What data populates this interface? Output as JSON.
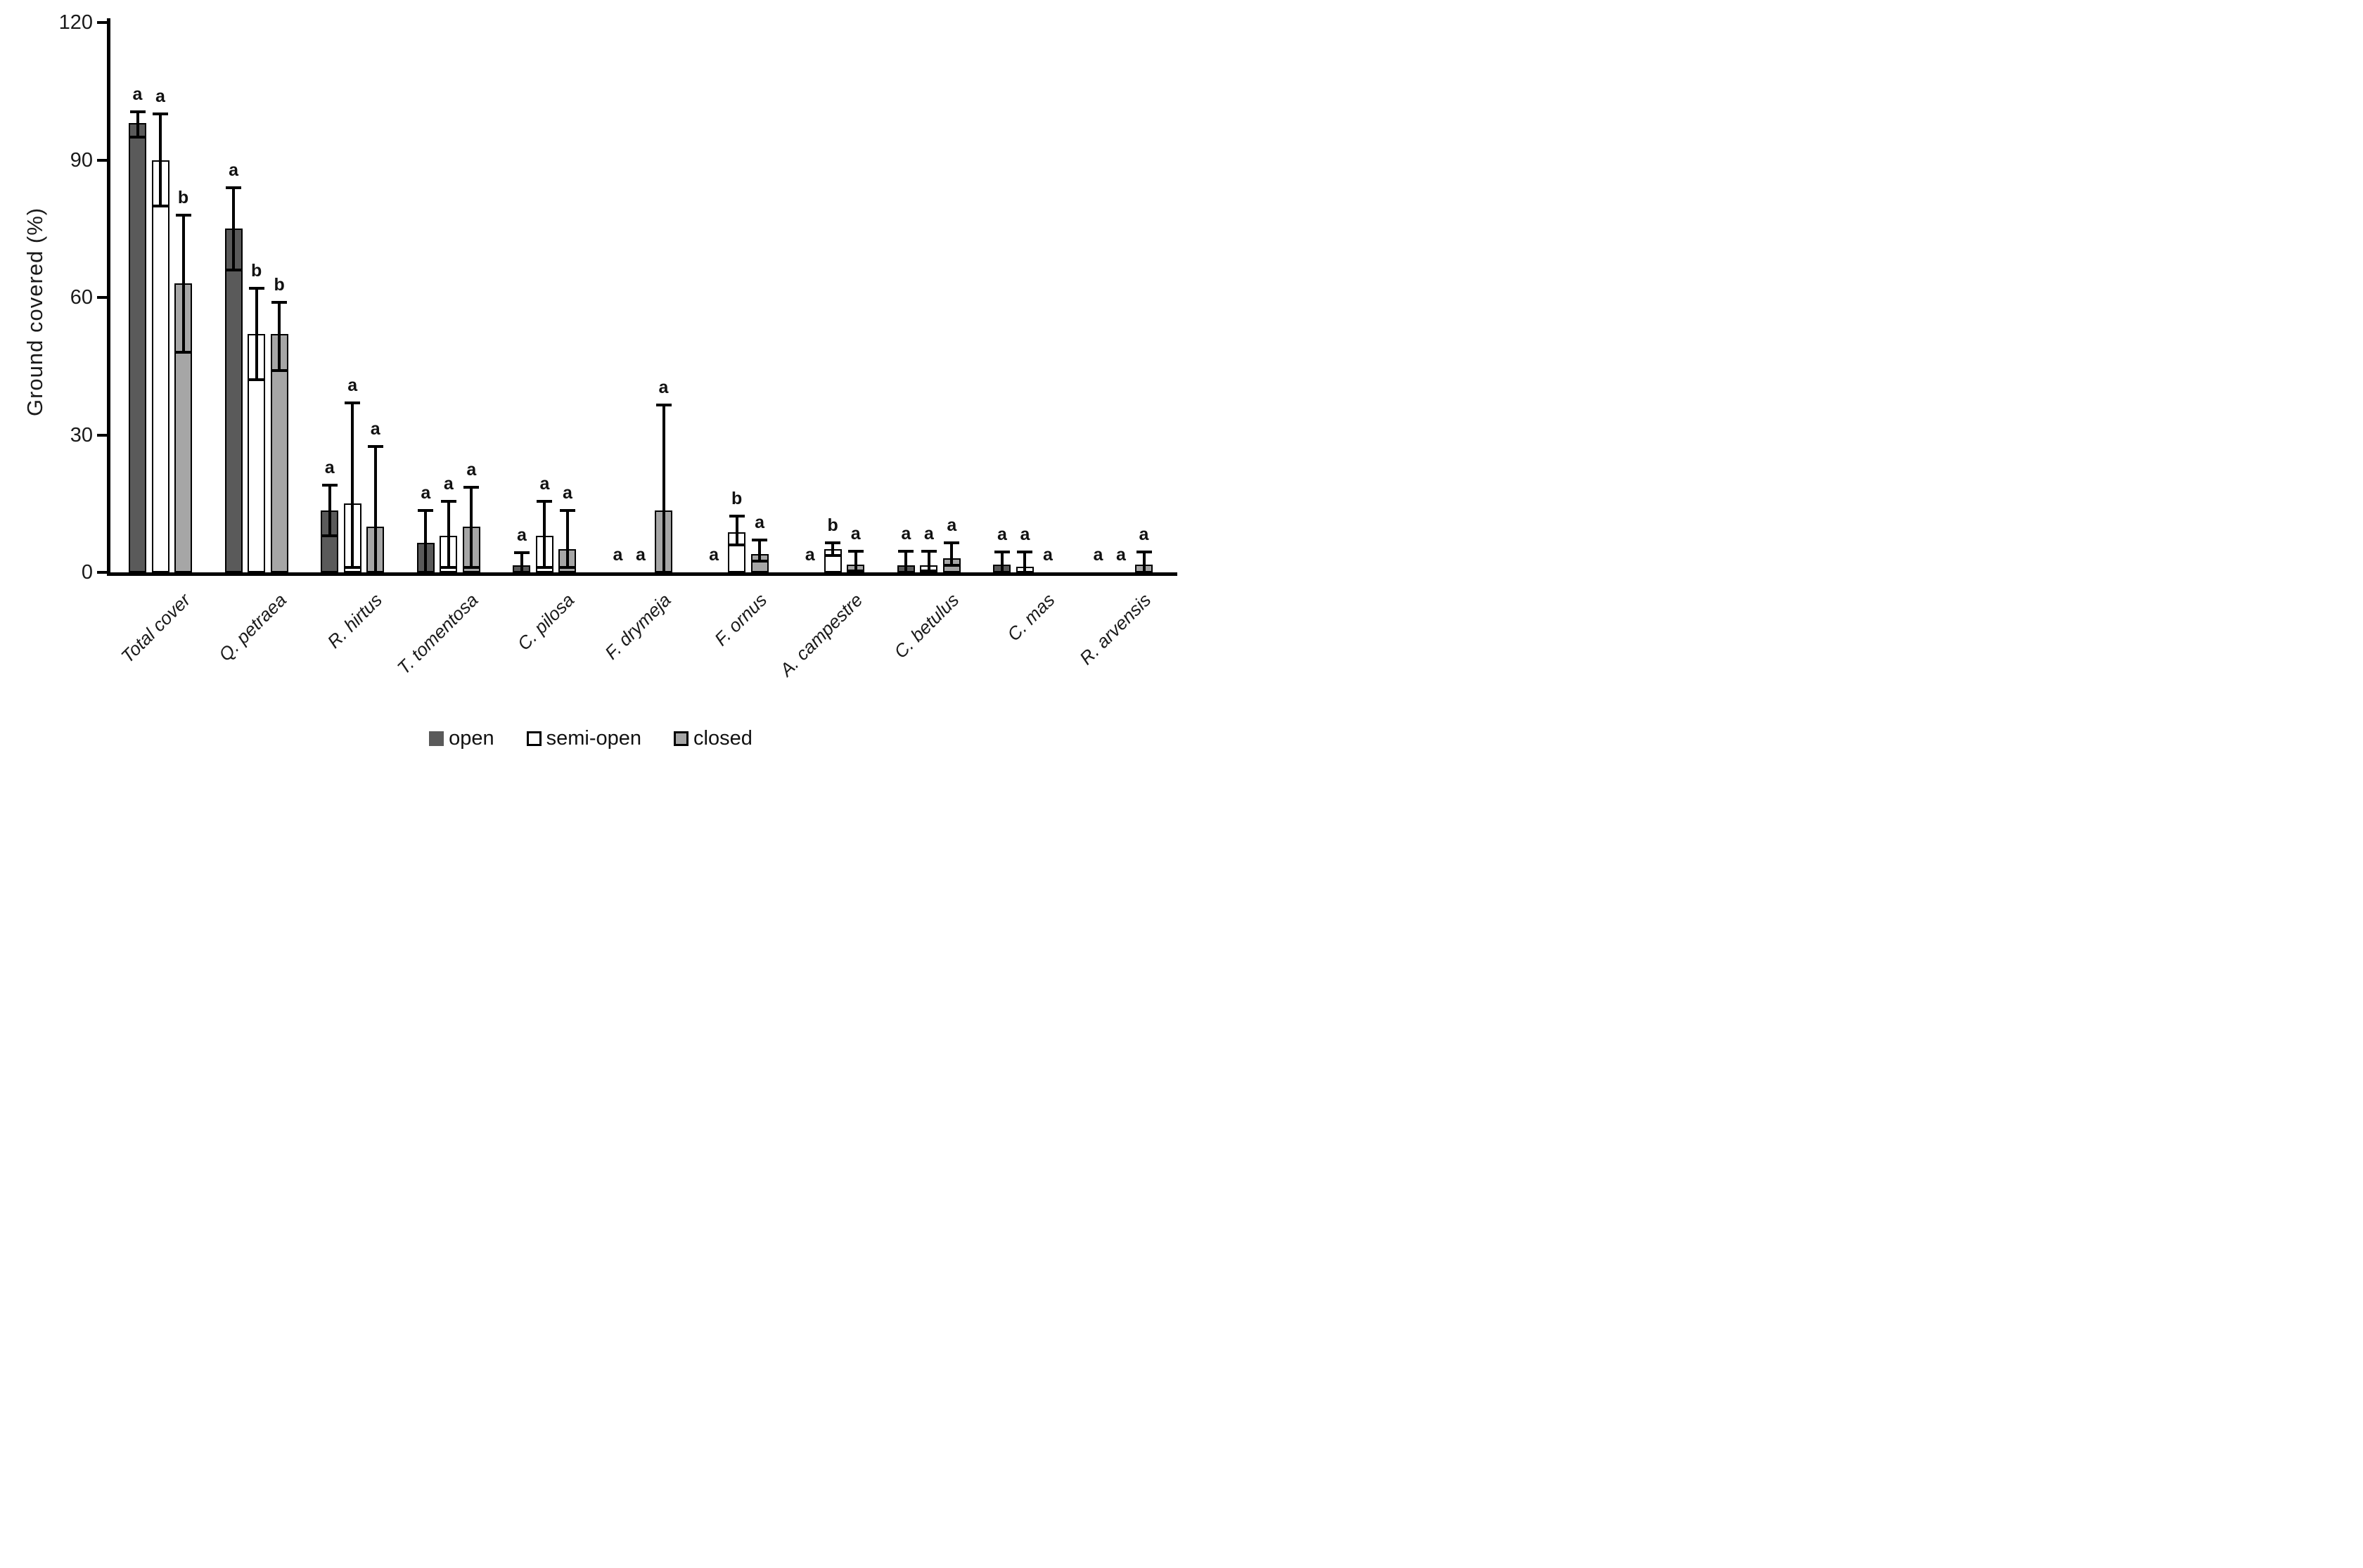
{
  "chart_data": {
    "type": "bar",
    "title": "",
    "xlabel": "",
    "ylabel": "Ground covered (%)",
    "ylim": [
      0,
      120
    ],
    "yticks": [
      "0",
      "30",
      "60",
      "90",
      "120"
    ],
    "grid": "off",
    "legend_position": "bottom",
    "categories": [
      "Total cover",
      "Q. petraea",
      "R. hirtus",
      "T. tomentosa",
      "C. pilosa",
      "F. drymeja",
      "F. ornus",
      "A. campestre",
      "C. betulus",
      "C. mas",
      "R. arvensis"
    ],
    "series": [
      {
        "name": "open",
        "fill": "#5a5a5a",
        "bar_border": "#000000",
        "legend_border": "none",
        "values": [
          98,
          75,
          13.5,
          6.5,
          1.5,
          0,
          0,
          0,
          1.5,
          1.7,
          0
        ],
        "err_hi": [
          100.5,
          84,
          19,
          13.5,
          4.3,
          0,
          0,
          0,
          4.6,
          4.4,
          0
        ],
        "err_lo": [
          95,
          66,
          8,
          0,
          0,
          0,
          0,
          0,
          0,
          0,
          0
        ],
        "letters": [
          "a",
          "a",
          "a",
          "a",
          "a",
          "a",
          "a",
          "a",
          "a",
          "a",
          "a"
        ]
      },
      {
        "name": "semi-open",
        "fill": "#ffffff",
        "bar_border": "#000000",
        "legend_border": "#000000",
        "values": [
          90,
          52,
          15,
          8,
          8,
          0,
          8.7,
          5,
          1.5,
          1.2,
          0
        ],
        "err_hi": [
          100,
          62,
          37,
          15.5,
          15.5,
          0,
          12.3,
          6.5,
          4.6,
          4.4,
          0
        ],
        "err_lo": [
          80,
          42,
          1,
          1,
          1,
          0,
          6,
          3.7,
          0.3,
          0.2,
          0
        ],
        "letters": [
          "a",
          "b",
          "a",
          "a",
          "a",
          "a",
          "b",
          "b",
          "a",
          "a",
          "a"
        ]
      },
      {
        "name": "closed",
        "fill": "#a6a6a6",
        "bar_border": "#000000",
        "legend_border": "#000000",
        "values": [
          63,
          52,
          10,
          10,
          5,
          13.5,
          4,
          1.7,
          3.1,
          0,
          1.7
        ],
        "err_hi": [
          78,
          59,
          27.5,
          18.5,
          13.5,
          36.5,
          7,
          4.6,
          6.5,
          0,
          4.4
        ],
        "err_lo": [
          48,
          44,
          0,
          1,
          1,
          0,
          2.4,
          0.3,
          1.5,
          0,
          0
        ],
        "letters": [
          "b",
          "b",
          "a",
          "a",
          "a",
          "a",
          "a",
          "a",
          "a",
          "a",
          "a"
        ]
      }
    ]
  }
}
